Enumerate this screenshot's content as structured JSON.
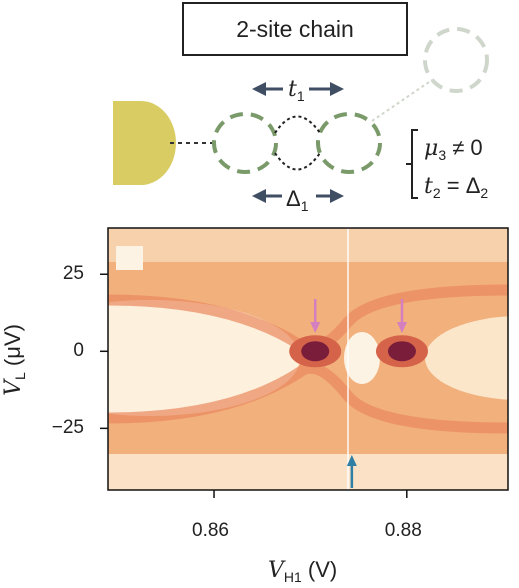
{
  "title": "2-site chain",
  "labels": {
    "t1_symbol": "t",
    "t1_sub": "1",
    "delta1_symbol": "Δ",
    "delta1_sub": "1",
    "cond1_sym": "μ",
    "cond1_sub": "3",
    "cond1_rel": " ≠ 0",
    "cond2_sym": "t",
    "cond2_sub": "2",
    "cond2_rel": " = Δ",
    "cond2_rel_sub": "2"
  },
  "colors": {
    "lead": "#d9cc63",
    "dot_outline": "#7a9a6a",
    "dot_faded": "#cfd6cb",
    "arrow_dark": "#3f4e63",
    "arrow_pink": "#d47fbf",
    "arrow_blue": "#2f7ea3"
  },
  "chart_data": {
    "type": "heatmap",
    "xlabel": "V_H1 (V)",
    "ylabel": "V_L (μV)",
    "xlim": [
      0.849,
      0.8905
    ],
    "ylim": [
      -45,
      40
    ],
    "x_ticks": [
      {
        "value": 0.86,
        "label": "0.86"
      },
      {
        "value": 0.88,
        "label": "0.88"
      }
    ],
    "y_ticks": [
      {
        "value": 25,
        "label": "25"
      },
      {
        "value": 0,
        "label": "0"
      },
      {
        "value": -25,
        "label": "−25"
      }
    ],
    "zero_bias_peaks_x": [
      0.8705,
      0.8795
    ],
    "arrows": [
      {
        "x": 0.8705,
        "color": "pink",
        "direction": "down"
      },
      {
        "x": 0.8795,
        "color": "pink",
        "direction": "down"
      },
      {
        "x": 0.8743,
        "color": "blue",
        "direction": "up"
      }
    ]
  }
}
